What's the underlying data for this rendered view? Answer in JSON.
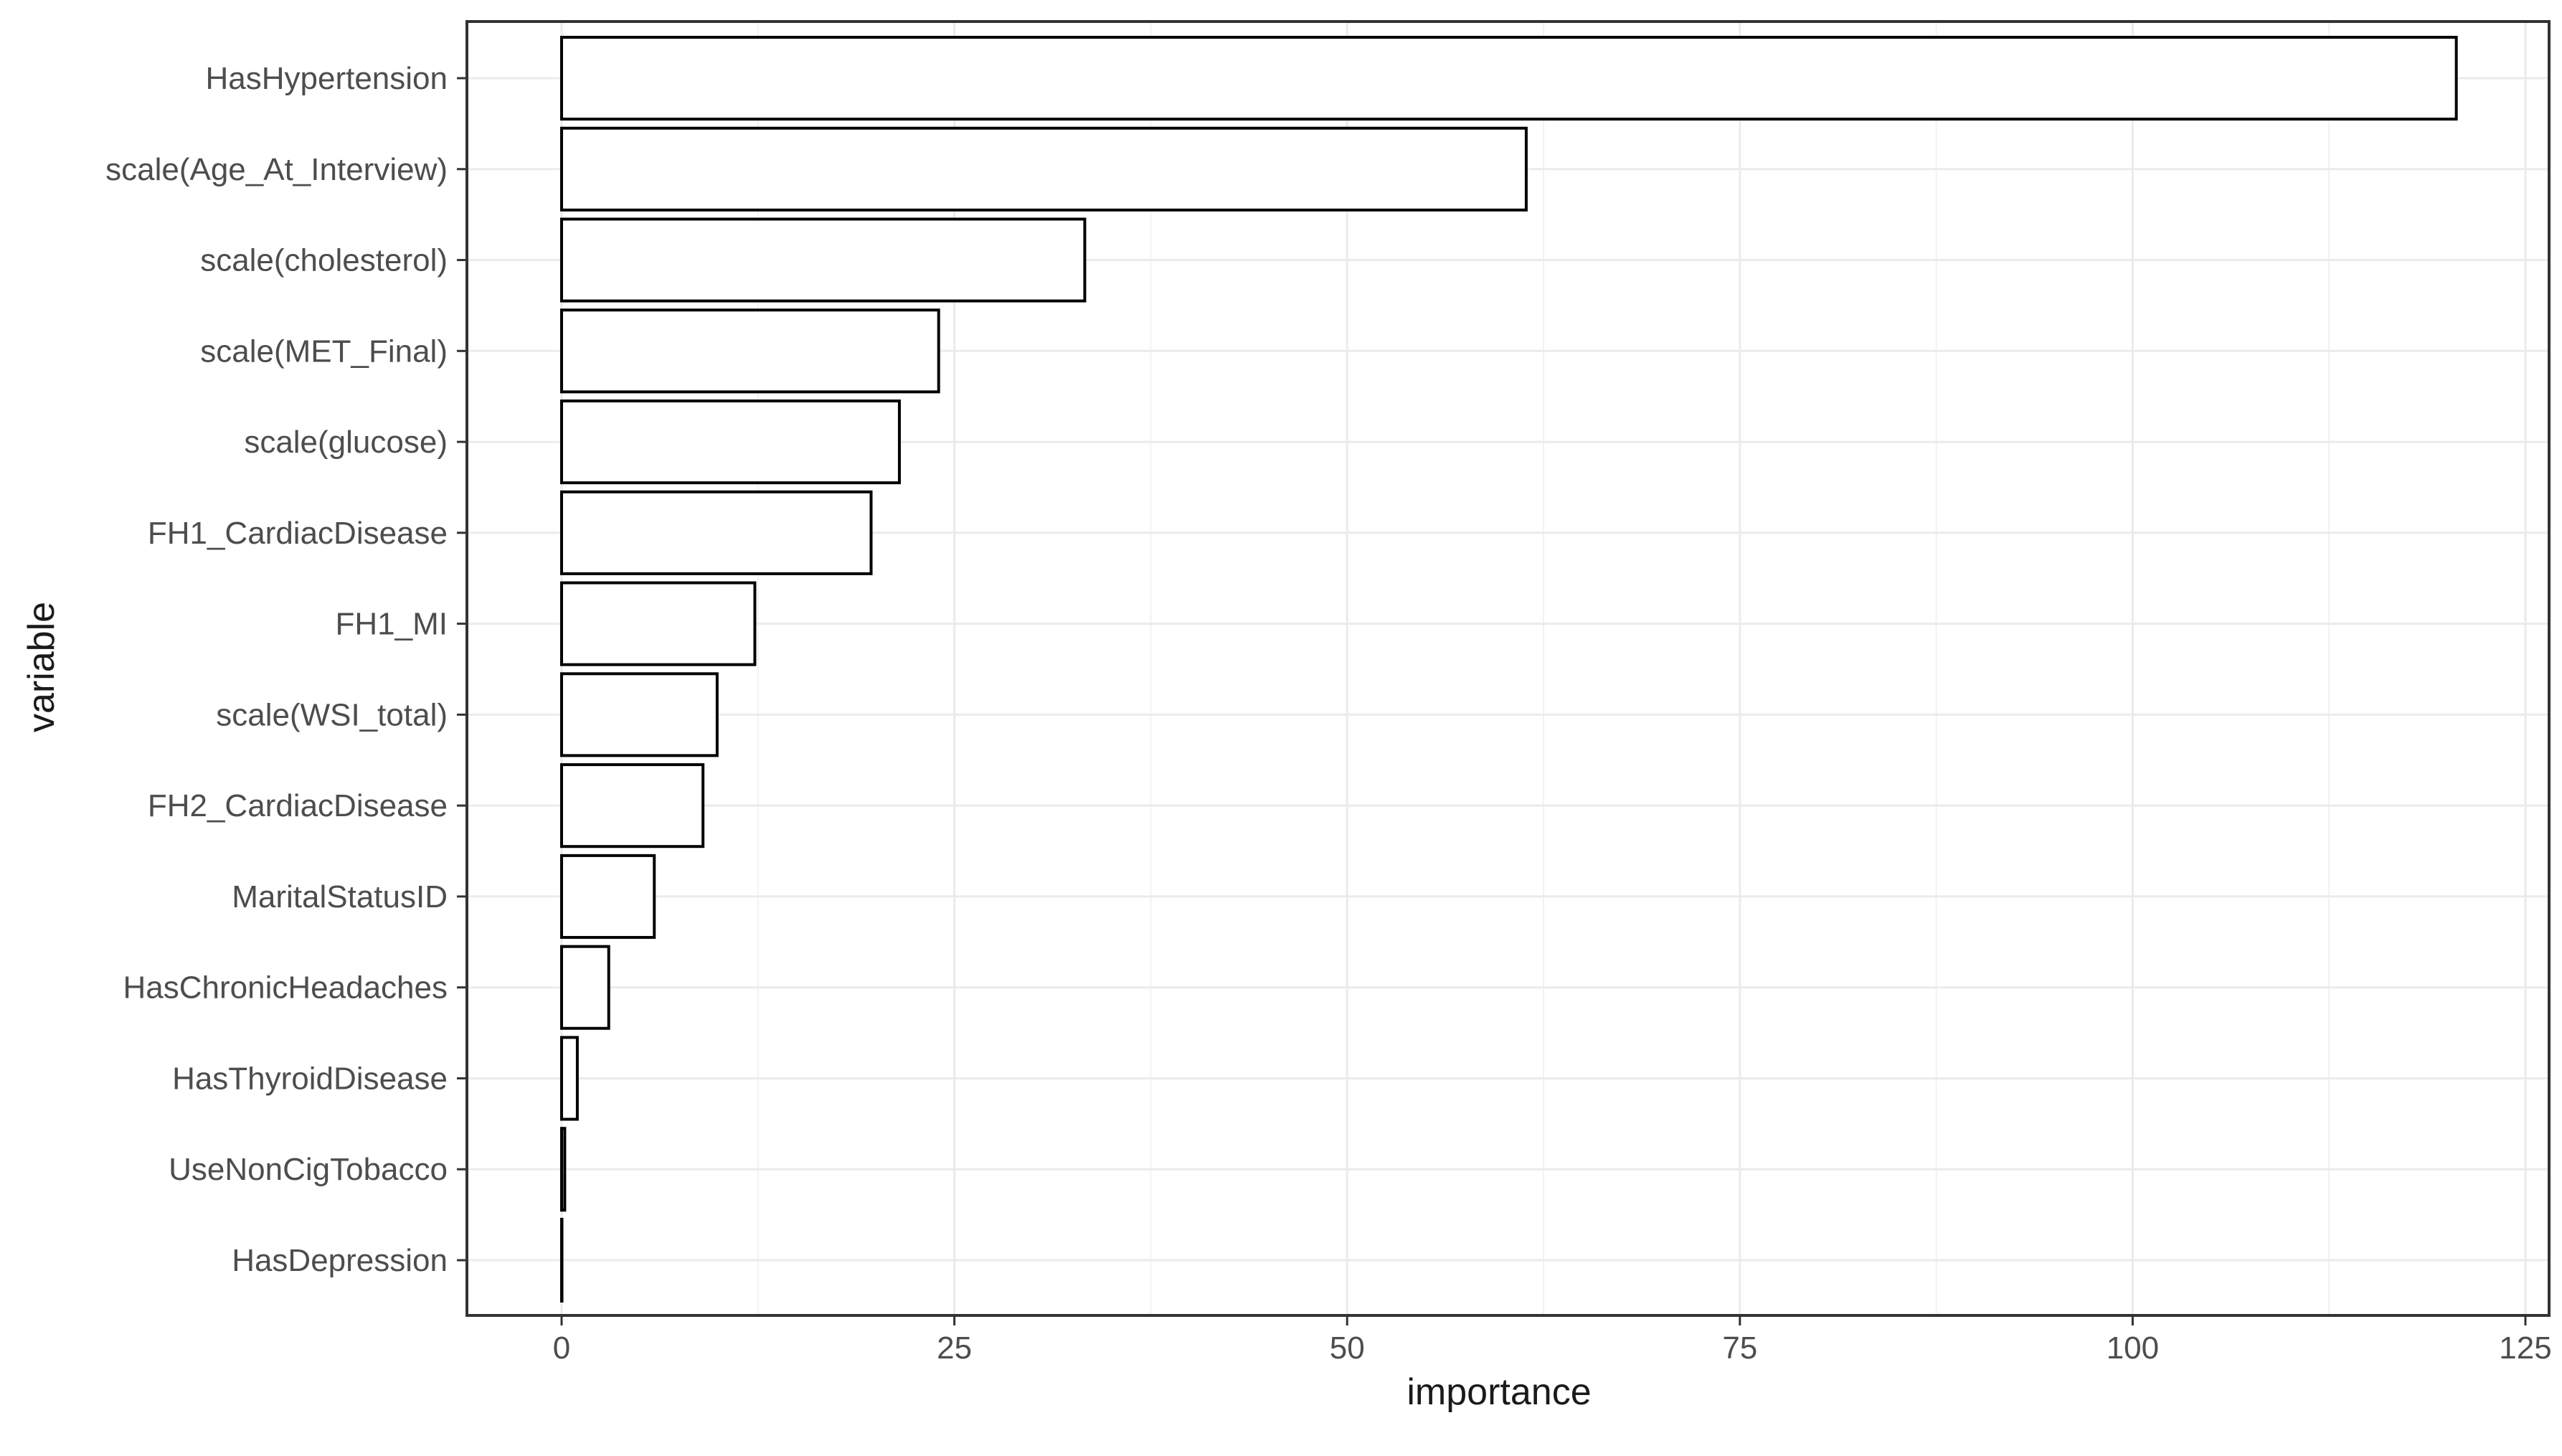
{
  "chart_data": {
    "type": "bar",
    "orientation": "horizontal",
    "xlabel": "importance",
    "ylabel": "variable",
    "xlim": [
      -6,
      126
    ],
    "xticks": [
      0,
      25,
      50,
      75,
      100,
      125
    ],
    "grid": true,
    "theme": "bw",
    "colors": {
      "bar_fill": "#ffffff",
      "bar_outline": "#000000",
      "grid": "#ebebeb",
      "text": "#4d4d4d"
    },
    "categories": [
      "HasHypertension",
      "scale(Age_At_Interview)",
      "scale(cholesterol)",
      "scale(MET_Final)",
      "scale(glucose)",
      "FH1_CardiacDisease",
      "FH1_MI",
      "scale(WSI_total)",
      "FH2_CardiacDisease",
      "MaritalStatusID",
      "HasChronicHeadaches",
      "HasThyroidDisease",
      "UseNonCigTobacco",
      "HasDepression"
    ],
    "values": [
      120.6,
      61.4,
      33.3,
      24.0,
      21.5,
      19.7,
      12.3,
      9.9,
      9.0,
      5.9,
      3.0,
      1.0,
      0.2,
      0.0
    ]
  }
}
